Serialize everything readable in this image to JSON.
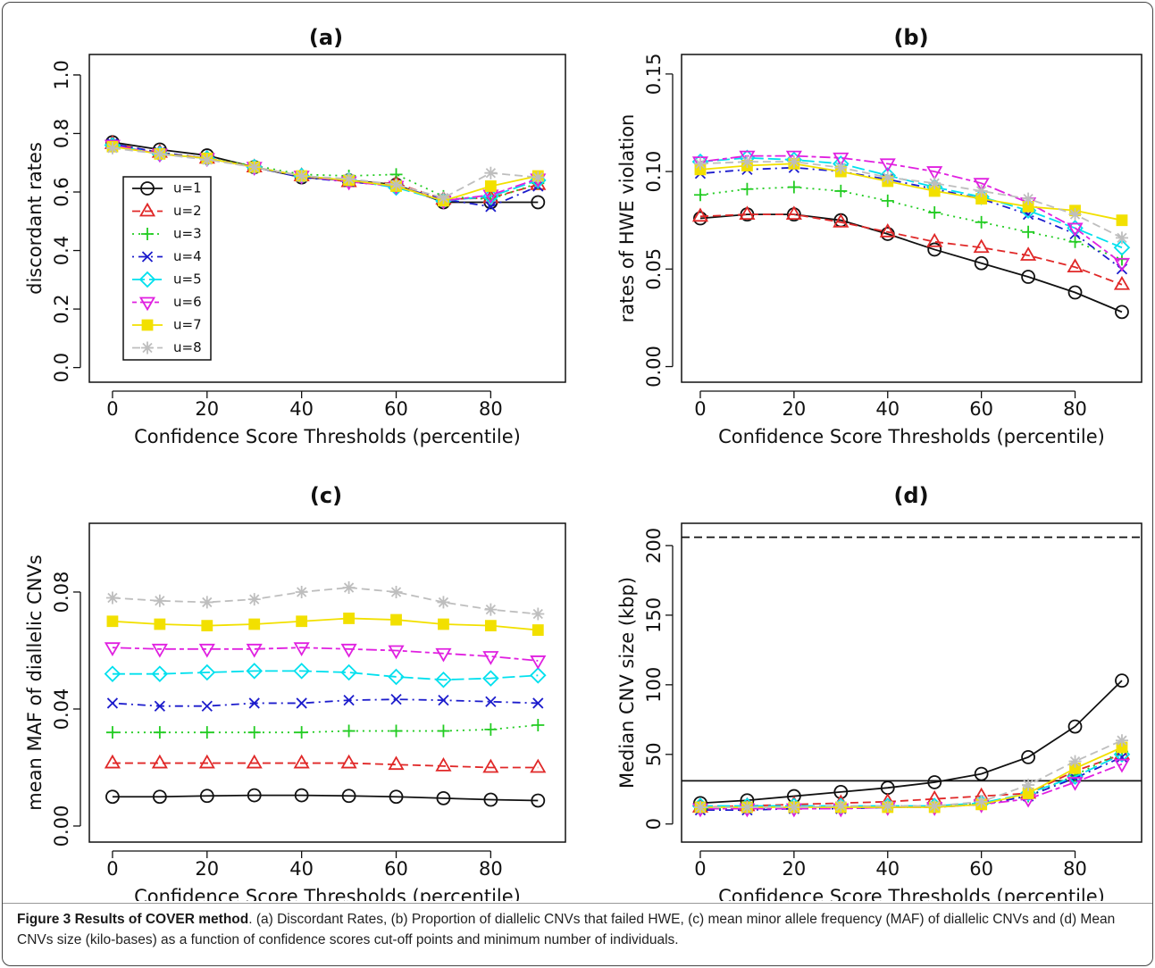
{
  "chart_data": [
    {
      "type": "line",
      "title": "(a)",
      "xlabel": "Confidence Score Thresholds (percentile)",
      "ylabel": "discordant rates",
      "x": [
        0,
        10,
        20,
        30,
        40,
        50,
        60,
        70,
        80,
        90
      ],
      "xlim": [
        -4.9,
        95.8
      ],
      "xticks": [
        0,
        20,
        40,
        60,
        80
      ],
      "ylim": [
        -0.05,
        1.07
      ],
      "yticks": [
        {
          "value": 0,
          "label": "0.0"
        },
        {
          "value": 0.2,
          "label": "0.2"
        },
        {
          "value": 0.4,
          "label": "0.4"
        },
        {
          "value": 0.6,
          "label": "0.6"
        },
        {
          "value": 0.8,
          "label": "0.8"
        },
        {
          "value": 1,
          "label": "1.0"
        }
      ],
      "legend": "center-left",
      "series": [
        {
          "name": "u=1",
          "color": "#111111",
          "marker": "circle",
          "dash": "solid",
          "values": [
            0.77,
            0.745,
            0.725,
            0.685,
            0.65,
            0.64,
            0.625,
            0.565,
            0.565,
            0.565
          ]
        },
        {
          "name": "u=2",
          "color": "#e02828",
          "marker": "triangle",
          "dash": "dashed",
          "values": [
            0.765,
            0.735,
            0.715,
            0.685,
            0.655,
            0.635,
            0.63,
            0.575,
            0.58,
            0.625
          ]
        },
        {
          "name": "u=3",
          "color": "#22cc22",
          "marker": "plus",
          "dash": "dotted",
          "values": [
            0.76,
            0.735,
            0.715,
            0.69,
            0.66,
            0.655,
            0.66,
            0.585,
            0.575,
            0.63
          ]
        },
        {
          "name": "u=4",
          "color": "#1c1ccc",
          "marker": "cross",
          "dash": "dotdash",
          "values": [
            0.765,
            0.735,
            0.715,
            0.685,
            0.65,
            0.635,
            0.62,
            0.575,
            0.55,
            0.62
          ]
        },
        {
          "name": "u=5",
          "color": "#00e0ee",
          "marker": "diamond",
          "dash": "longdash",
          "values": [
            0.76,
            0.73,
            0.715,
            0.685,
            0.655,
            0.64,
            0.615,
            0.57,
            0.585,
            0.64
          ]
        },
        {
          "name": "u=6",
          "color": "#e020e0",
          "marker": "triangle-down",
          "dash": "twodash",
          "values": [
            0.76,
            0.73,
            0.715,
            0.685,
            0.655,
            0.635,
            0.62,
            0.57,
            0.59,
            0.645
          ]
        },
        {
          "name": "u=7",
          "color": "#f2e000",
          "marker": "square",
          "dash": "solid",
          "values": [
            0.755,
            0.73,
            0.715,
            0.685,
            0.655,
            0.64,
            0.62,
            0.57,
            0.62,
            0.655
          ]
        },
        {
          "name": "u=8",
          "color": "#bebebe",
          "marker": "asterisk",
          "dash": "dashed",
          "values": [
            0.75,
            0.73,
            0.71,
            0.685,
            0.655,
            0.645,
            0.625,
            0.58,
            0.665,
            0.65
          ]
        }
      ]
    },
    {
      "type": "line",
      "title": "(b)",
      "xlabel": "Confidence Score Thresholds (percentile)",
      "ylabel": "rates of HWE violation",
      "x": [
        0,
        10,
        20,
        30,
        40,
        50,
        60,
        70,
        80,
        90
      ],
      "xlim": [
        -4.0,
        94.2
      ],
      "xticks": [
        0,
        20,
        40,
        60,
        80
      ],
      "ylim": [
        -0.008,
        0.16
      ],
      "yticks": [
        {
          "value": 0,
          "label": "0.00"
        },
        {
          "value": 0.05,
          "label": "0.05"
        },
        {
          "value": 0.1,
          "label": "0.10"
        },
        {
          "value": 0.15,
          "label": "0.15"
        }
      ],
      "series": [
        {
          "color": "#111111",
          "marker": "circle",
          "dash": "solid",
          "values": [
            0.076,
            0.078,
            0.078,
            0.075,
            0.068,
            0.06,
            0.053,
            0.046,
            0.038,
            0.028
          ]
        },
        {
          "color": "#e02828",
          "marker": "triangle",
          "dash": "dashed",
          "values": [
            0.077,
            0.078,
            0.078,
            0.074,
            0.069,
            0.064,
            0.061,
            0.057,
            0.051,
            0.042
          ]
        },
        {
          "color": "#22cc22",
          "marker": "plus",
          "dash": "dotted",
          "values": [
            0.088,
            0.091,
            0.092,
            0.09,
            0.085,
            0.079,
            0.074,
            0.069,
            0.064,
            0.055
          ]
        },
        {
          "color": "#1c1ccc",
          "marker": "cross",
          "dash": "dotdash",
          "values": [
            0.099,
            0.101,
            0.102,
            0.1,
            0.096,
            0.091,
            0.086,
            0.078,
            0.068,
            0.05
          ]
        },
        {
          "color": "#00e0ee",
          "marker": "diamond",
          "dash": "longdash",
          "values": [
            0.105,
            0.107,
            0.106,
            0.104,
            0.098,
            0.092,
            0.087,
            0.08,
            0.071,
            0.061
          ]
        },
        {
          "color": "#e020e0",
          "marker": "triangle-down",
          "dash": "twodash",
          "values": [
            0.105,
            0.108,
            0.108,
            0.107,
            0.104,
            0.1,
            0.094,
            0.084,
            0.071,
            0.053
          ]
        },
        {
          "color": "#f2e000",
          "marker": "square",
          "dash": "solid",
          "values": [
            0.101,
            0.103,
            0.104,
            0.1,
            0.095,
            0.09,
            0.086,
            0.082,
            0.08,
            0.075
          ]
        },
        {
          "color": "#bebebe",
          "marker": "asterisk",
          "dash": "dashed",
          "values": [
            0.104,
            0.105,
            0.105,
            0.102,
            0.097,
            0.094,
            0.09,
            0.086,
            0.078,
            0.066
          ]
        }
      ]
    },
    {
      "type": "line",
      "title": "(c)",
      "xlabel": "Confidence Score Thresholds (percentile)",
      "ylabel": "mean MAF of diallelic CNVs",
      "x": [
        0,
        10,
        20,
        30,
        40,
        50,
        60,
        70,
        80,
        90
      ],
      "xlim": [
        -4.9,
        95.8
      ],
      "xticks": [
        0,
        20,
        40,
        60,
        80
      ],
      "ylim": [
        -0.0055,
        0.1035
      ],
      "yticks": [
        {
          "value": 0,
          "label": "0.00"
        },
        {
          "value": 0.04,
          "label": "0.04"
        },
        {
          "value": 0.08,
          "label": "0.08"
        }
      ],
      "series": [
        {
          "color": "#111111",
          "marker": "circle",
          "dash": "solid",
          "values": [
            0.01,
            0.01,
            0.0103,
            0.0105,
            0.0105,
            0.0103,
            0.01,
            0.0095,
            0.009,
            0.0087
          ]
        },
        {
          "color": "#e02828",
          "marker": "triangle",
          "dash": "dashed",
          "values": [
            0.0215,
            0.0215,
            0.0215,
            0.0215,
            0.0215,
            0.0215,
            0.021,
            0.0205,
            0.02,
            0.02
          ]
        },
        {
          "color": "#22cc22",
          "marker": "plus",
          "dash": "dotted",
          "values": [
            0.032,
            0.032,
            0.032,
            0.032,
            0.032,
            0.0325,
            0.0325,
            0.0325,
            0.033,
            0.0345
          ]
        },
        {
          "color": "#1c1ccc",
          "marker": "cross",
          "dash": "dotdash",
          "values": [
            0.042,
            0.041,
            0.041,
            0.042,
            0.042,
            0.043,
            0.0433,
            0.043,
            0.0425,
            0.042
          ]
        },
        {
          "color": "#00e0ee",
          "marker": "diamond",
          "dash": "longdash",
          "values": [
            0.052,
            0.052,
            0.0525,
            0.053,
            0.053,
            0.0525,
            0.051,
            0.05,
            0.0505,
            0.0515
          ]
        },
        {
          "color": "#e020e0",
          "marker": "triangle-down",
          "dash": "twodash",
          "values": [
            0.061,
            0.0605,
            0.0605,
            0.0605,
            0.061,
            0.0605,
            0.06,
            0.059,
            0.058,
            0.0565
          ]
        },
        {
          "color": "#f2e000",
          "marker": "square",
          "dash": "solid",
          "values": [
            0.07,
            0.069,
            0.0685,
            0.069,
            0.07,
            0.071,
            0.0705,
            0.069,
            0.0685,
            0.067
          ]
        },
        {
          "color": "#bebebe",
          "marker": "asterisk",
          "dash": "dashed",
          "values": [
            0.078,
            0.077,
            0.0765,
            0.0775,
            0.08,
            0.0815,
            0.08,
            0.0765,
            0.074,
            0.0725
          ]
        }
      ]
    },
    {
      "type": "line",
      "title": "(d)",
      "xlabel": "Confidence Score Thresholds (percentile)",
      "ylabel": "Median CNV size (kbp)",
      "x": [
        0,
        10,
        20,
        30,
        40,
        50,
        60,
        70,
        80,
        90
      ],
      "xlim": [
        -4.0,
        94.2
      ],
      "xticks": [
        0,
        20,
        40,
        60,
        80
      ],
      "ylim": [
        -13,
        216
      ],
      "yticks": [
        0,
        50,
        100,
        150,
        200
      ],
      "hlines": [
        {
          "value": 206,
          "dash": "dashed",
          "color": "#111111"
        },
        {
          "value": 31,
          "dash": "solid",
          "color": "#111111"
        }
      ],
      "series": [
        {
          "color": "#111111",
          "marker": "circle",
          "dash": "solid",
          "values": [
            15,
            17,
            20,
            23,
            26,
            30,
            36,
            48,
            70,
            103
          ]
        },
        {
          "color": "#e02828",
          "marker": "triangle",
          "dash": "dashed",
          "values": [
            12,
            13,
            14,
            15,
            16,
            18,
            20,
            22,
            38,
            50
          ]
        },
        {
          "color": "#22cc22",
          "marker": "plus",
          "dash": "dotted",
          "values": [
            11,
            11,
            11,
            12,
            13,
            13,
            15,
            20,
            35,
            52
          ]
        },
        {
          "color": "#1c1ccc",
          "marker": "cross",
          "dash": "dotdash",
          "values": [
            10,
            10,
            11,
            11,
            12,
            12,
            14,
            20,
            33,
            48
          ]
        },
        {
          "color": "#00e0ee",
          "marker": "diamond",
          "dash": "longdash",
          "values": [
            13,
            13,
            13,
            13,
            13,
            13,
            15,
            22,
            34,
            50
          ]
        },
        {
          "color": "#e020e0",
          "marker": "triangle-down",
          "dash": "twodash",
          "values": [
            11,
            11,
            11,
            11,
            12,
            12,
            14,
            18,
            30,
            43
          ]
        },
        {
          "color": "#f2e000",
          "marker": "square",
          "dash": "solid",
          "values": [
            12,
            12,
            12,
            12,
            12,
            12,
            14,
            22,
            40,
            55
          ]
        },
        {
          "color": "#bebebe",
          "marker": "asterisk",
          "dash": "dashed",
          "values": [
            12,
            12,
            12,
            13,
            13,
            13,
            16,
            28,
            45,
            60
          ]
        }
      ]
    }
  ],
  "caption": {
    "label": "Figure 3 Results of COVER method",
    "text": ". (a) Discordant Rates, (b) Proportion of diallelic CNVs that failed HWE, (c) mean minor allele frequency (MAF) of diallelic CNVs and (d) Mean CNVs size (kilo-bases) as a function of confidence scores cut-off points and minimum number of individuals."
  }
}
